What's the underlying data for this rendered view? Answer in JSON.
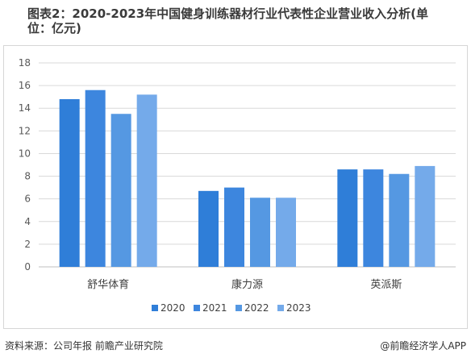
{
  "title": "图表2：2020-2023年中国健身训练器材行业代表性企业营业收入分析(单位：亿元)",
  "source": "资料来源：公司年报 前瞻产业研究院",
  "credit": "@前瞻经济学人APP",
  "chart_data": {
    "type": "bar",
    "title": "图表2：2020-2023年中国健身训练器材行业代表性企业营业收入分析(单位：亿元)",
    "categories": [
      "舒华体育",
      "康力源",
      "英派斯"
    ],
    "series": [
      {
        "name": "2020",
        "values": [
          14.8,
          6.7,
          8.6
        ],
        "color": "#2f7ed8"
      },
      {
        "name": "2021",
        "values": [
          15.6,
          7.0,
          8.6
        ],
        "color": "#3d86de"
      },
      {
        "name": "2022",
        "values": [
          13.5,
          6.1,
          8.2
        ],
        "color": "#5598e2"
      },
      {
        "name": "2023",
        "values": [
          15.2,
          6.1,
          8.9
        ],
        "color": "#74aaea"
      }
    ],
    "ylim": [
      0,
      18
    ],
    "yticks": [
      0,
      2,
      4,
      6,
      8,
      10,
      12,
      14,
      16,
      18
    ],
    "grid": true,
    "legend": "bottom"
  }
}
